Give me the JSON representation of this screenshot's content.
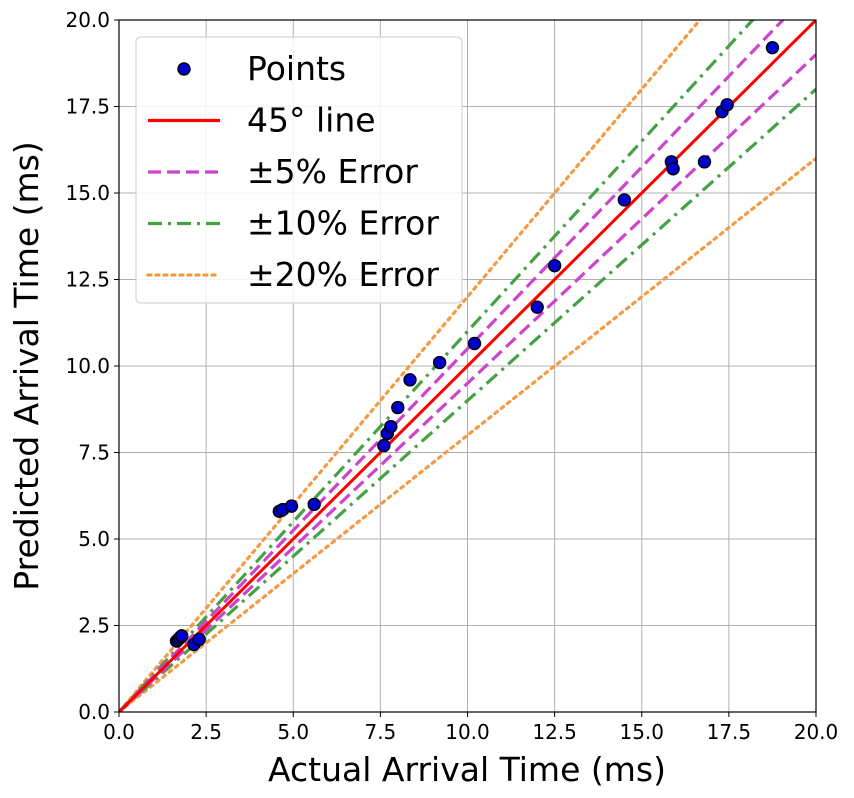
{
  "chart_data": {
    "type": "scatter",
    "xlabel": "Actual Arrival Time (ms)",
    "ylabel": "Predicted Arrival Time (ms)",
    "xlim": [
      0,
      20
    ],
    "ylim": [
      0,
      20
    ],
    "xticks": [
      "0.0",
      "2.5",
      "5.0",
      "7.5",
      "10.0",
      "12.5",
      "15.0",
      "17.5",
      "20.0"
    ],
    "yticks": [
      "0.0",
      "2.5",
      "5.0",
      "7.5",
      "10.0",
      "12.5",
      "15.0",
      "17.5",
      "20.0"
    ],
    "grid": true,
    "legend_position": "top-left",
    "points": {
      "name": "Points",
      "color": "#0000cc",
      "edge_color": "#000000",
      "x": [
        1.65,
        1.7,
        1.75,
        1.8,
        2.15,
        2.3,
        4.6,
        4.7,
        4.95,
        5.6,
        7.6,
        7.7,
        7.8,
        8.0,
        8.35,
        9.2,
        10.2,
        12.0,
        12.5,
        14.5,
        15.85,
        15.9,
        16.8,
        17.3,
        17.45,
        18.75
      ],
      "y": [
        2.05,
        2.1,
        2.15,
        2.2,
        1.95,
        2.1,
        5.8,
        5.85,
        5.95,
        6.0,
        7.7,
        8.05,
        8.25,
        8.8,
        9.6,
        10.1,
        10.65,
        11.7,
        12.9,
        14.8,
        15.9,
        15.7,
        15.9,
        17.35,
        17.55,
        19.2
      ]
    },
    "lines": [
      {
        "name": "45° line",
        "slopes": [
          1.0
        ],
        "color": "#ff0000",
        "style": "solid"
      },
      {
        "name": "±5% Error",
        "slopes": [
          1.05,
          0.95
        ],
        "color": "#cc44cc",
        "style": "dashed"
      },
      {
        "name": "±10% Error",
        "slopes": [
          1.1,
          0.9
        ],
        "color": "#44a244",
        "style": "dashdot"
      },
      {
        "name": "±20% Error",
        "slopes": [
          1.2,
          0.8
        ],
        "color": "#f59a44",
        "style": "dotted"
      }
    ]
  }
}
